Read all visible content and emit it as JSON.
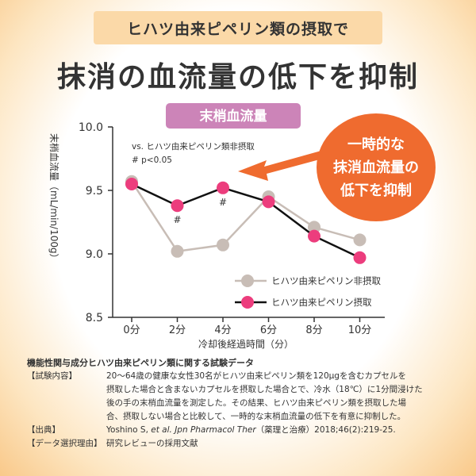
{
  "banner": "ヒハツ由来ピペリン類の摂取で",
  "headline": "抹消の血流量の低下を抑制",
  "callout": {
    "line1": "一時的な",
    "line2": "抹消血流量の",
    "line3": "低下を抑制"
  },
  "colors": {
    "control": "#c8bdb6",
    "treatment": "#ec3d7d",
    "callout": "#ef6b2f",
    "title_tab": "#cc84b8",
    "banner": "#fbd9a8"
  },
  "chart_data": {
    "type": "line",
    "title": "末梢血流量",
    "ylabel": "末梢血流量（mL/min/100g）",
    "xlabel": "冷却後経過時間（分）",
    "categories": [
      "0分",
      "2分",
      "4分",
      "6分",
      "8分",
      "10分"
    ],
    "ylim": [
      8.5,
      10.0
    ],
    "yticks": [
      "10.0",
      "9.5",
      "9.0",
      "8.5"
    ],
    "series": [
      {
        "name": "ヒハツ由来ピペリン非摂取",
        "values": [
          9.57,
          9.02,
          9.07,
          9.45,
          9.21,
          9.11
        ]
      },
      {
        "name": "ヒハツ由来ピペリン摂取",
        "values": [
          9.55,
          9.38,
          9.52,
          9.41,
          9.14,
          8.97
        ]
      }
    ],
    "annotation_line1": "vs. ヒハツ由来ピペリン類非摂取",
    "annotation_line2": "# p<0.05",
    "significance_marker": "#"
  },
  "notes": {
    "title": "機能性関与成分ヒハツ由来ピペリン類に関する試験データ",
    "content_key": "【試験内容】",
    "content_1": "20～64歳の健康な女性30名がヒハツ由来ピペリン類を120μgを含むカプセルを",
    "content_2": "摂取した場合と含まないカプセルを摂取した場合とで、冷水（18℃）に1分間浸けた",
    "content_3": "後の手の末梢血流量を測定した。その結果、ヒハツ由来ピペリン類を摂取した場",
    "content_4": "合、摂取しない場合と比較して、一時的な末梢血流量の低下を有意に抑制した。",
    "source_key": "【出典】",
    "source_author": "Yoshino S, ",
    "source_journal": "et al. Jpn Pharmacol Ther",
    "source_rest": "（薬理と治療）2018;46(2):219-25.",
    "reason_key": "【データ選択理由】",
    "reason_value": "研究レビューの採用文献"
  }
}
